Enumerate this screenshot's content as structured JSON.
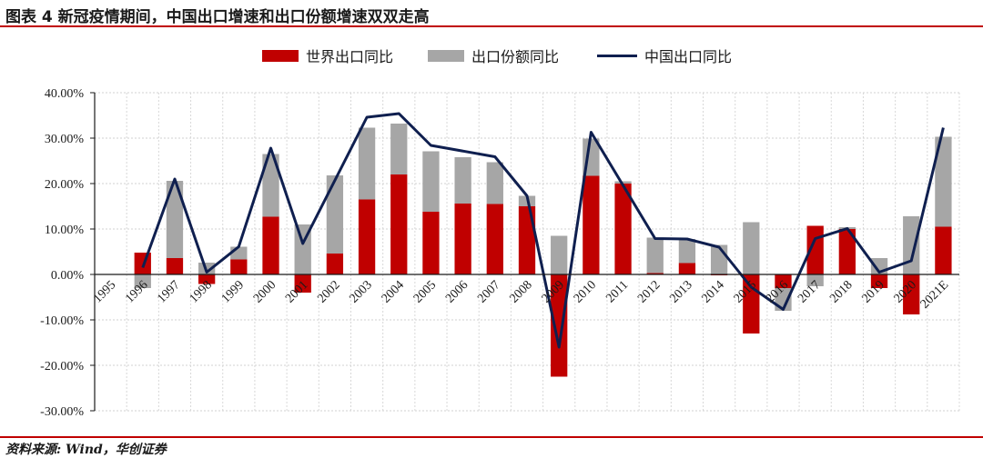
{
  "header": {
    "title": "图表 4 新冠疫情期间，中国出口增速和出口份额增速双双走高"
  },
  "footer": {
    "source": "资料来源: Wind，华创证券"
  },
  "colors": {
    "accent": "#c00000",
    "world": "#c00000",
    "share": "#a6a6a6",
    "china": "#0f1f4f"
  },
  "chart_data": {
    "type": "bar",
    "title": "",
    "xlabel": "",
    "ylabel": "",
    "ylim": [
      -30,
      40
    ],
    "yticks": [
      "-30.00%",
      "-20.00%",
      "-10.00%",
      "0.00%",
      "10.00%",
      "20.00%",
      "30.00%",
      "40.00%"
    ],
    "grid": true,
    "legend_position": "top",
    "stacked": true,
    "categories": [
      "1995",
      "1996",
      "1997",
      "1998",
      "1999",
      "2000",
      "2001",
      "2002",
      "2003",
      "2004",
      "2005",
      "2006",
      "2007",
      "2008",
      "2009",
      "2010",
      "2011",
      "2012",
      "2013",
      "2014",
      "2015",
      "2016",
      "2017",
      "2018",
      "2019",
      "2020",
      "2021E"
    ],
    "series": [
      {
        "name": "世界出口同比",
        "type": "bar",
        "values": [
          null,
          4.8,
          3.6,
          -2.1,
          3.3,
          12.7,
          -4.0,
          4.6,
          16.5,
          22.0,
          13.8,
          15.6,
          15.5,
          15.0,
          -22.5,
          21.7,
          20.0,
          0.3,
          2.5,
          -0.2,
          -13.0,
          -3.0,
          10.7,
          10.0,
          -3.0,
          -8.8,
          10.5
        ]
      },
      {
        "name": "出口份额同比",
        "type": "bar",
        "values": [
          null,
          -3.0,
          17.0,
          2.6,
          2.8,
          13.8,
          11.0,
          17.2,
          15.8,
          11.2,
          13.3,
          10.2,
          9.2,
          2.3,
          8.5,
          8.2,
          0.5,
          7.8,
          5.3,
          6.5,
          11.5,
          -5.0,
          -2.6,
          0.4,
          3.6,
          12.8,
          19.8
        ]
      },
      {
        "name": "中国出口同比",
        "type": "line",
        "values": [
          null,
          1.5,
          21.0,
          0.5,
          6.1,
          27.8,
          6.8,
          null,
          34.6,
          35.4,
          28.4,
          null,
          25.9,
          17.3,
          -16.0,
          31.3,
          null,
          7.9,
          7.8,
          6.0,
          -2.8,
          -7.7,
          7.9,
          10.1,
          0.5,
          3.0,
          32.3
        ]
      }
    ]
  }
}
